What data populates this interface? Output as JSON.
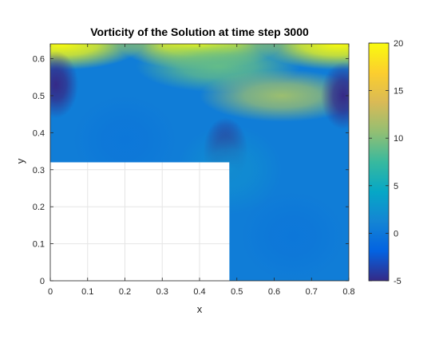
{
  "chart_data": {
    "type": "heatmap",
    "title": "Vorticity of the Solution at time step 3000",
    "xlabel": "x",
    "ylabel": "y",
    "xlim": [
      0,
      0.8
    ],
    "ylim": [
      0,
      0.64
    ],
    "xticks": [
      0,
      0.1,
      0.2,
      0.3,
      0.4,
      0.5,
      0.6,
      0.7,
      0.8
    ],
    "xtick_labels": [
      "0",
      "0.1",
      "0.2",
      "0.3",
      "0.4",
      "0.5",
      "0.6",
      "0.7",
      "0.8"
    ],
    "yticks": [
      0,
      0.1,
      0.2,
      0.3,
      0.4,
      0.5,
      0.6
    ],
    "ytick_labels": [
      "0",
      "0.1",
      "0.2",
      "0.3",
      "0.4",
      "0.5",
      "0.6"
    ],
    "grid": true,
    "colormap": "parula",
    "colorbar": {
      "limits": [
        -5,
        20
      ],
      "ticks": [
        -5,
        0,
        5,
        10,
        15,
        20
      ],
      "tick_labels": [
        "-5",
        "0",
        "5",
        "10",
        "15",
        "20"
      ]
    },
    "domain_regions": [
      {
        "x": [
          0,
          0.8
        ],
        "y": [
          0.32,
          0.64
        ]
      },
      {
        "x": [
          0.48,
          0.8
        ],
        "y": [
          0,
          0.32
        ]
      }
    ],
    "excluded_region": {
      "x": [
        0,
        0.48
      ],
      "y": [
        0,
        0.32
      ]
    },
    "features": [
      {
        "x": 0.4,
        "y": 0.64,
        "value": 20
      },
      {
        "x": 0.03,
        "y": 0.64,
        "value": 20
      },
      {
        "x": 0.77,
        "y": 0.64,
        "value": 20
      },
      {
        "x": 0.45,
        "y": 0.58,
        "value": 9
      },
      {
        "x": 0.62,
        "y": 0.5,
        "value": 11
      },
      {
        "x": 0.015,
        "y": 0.53,
        "value": -5
      },
      {
        "x": 0.785,
        "y": 0.5,
        "value": -5
      },
      {
        "x": 0.47,
        "y": 0.35,
        "value": -5
      },
      {
        "x": 0.48,
        "y": 0.3,
        "value": 2
      },
      {
        "x": 0.2,
        "y": 0.38,
        "value": 0
      },
      {
        "x": 0.65,
        "y": 0.12,
        "value": 0
      }
    ]
  },
  "colors": {
    "parula": [
      "#352a87",
      "#0363e1",
      "#1485d4",
      "#06a7c6",
      "#38b99e",
      "#92bf73",
      "#d9ba56",
      "#fcce2e",
      "#f9fb0e"
    ],
    "axes": "#262626",
    "grid": "#e5e5e5",
    "background": "#ffffff"
  }
}
